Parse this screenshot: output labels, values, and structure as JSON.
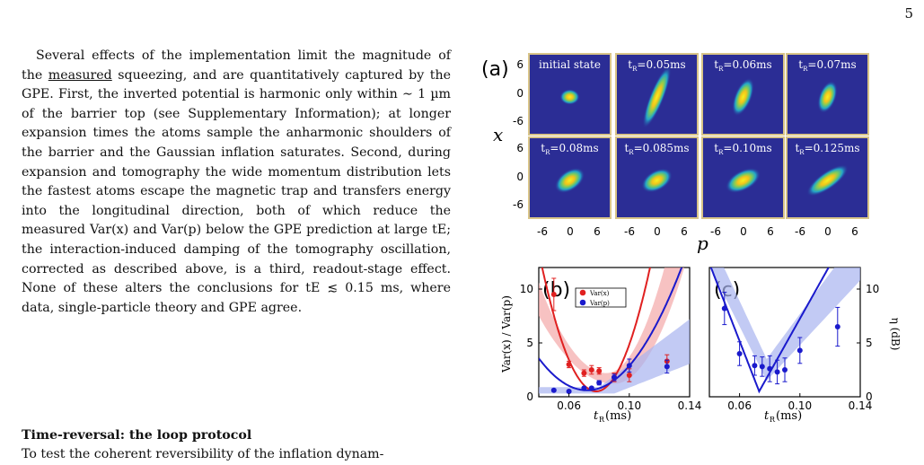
{
  "page_number": "5",
  "body": {
    "pre_measured": "Several effects of the implementation limit the magnitude of the ",
    "measured": "measured",
    "post_measured": " squeezing, and are quantitatively captured by the GPE. First, the inverted potential is harmonic only within ∼ 1 µm of the barrier top (see Supplementary Information); at longer expansion times the atoms sample the anharmonic shoulders of the barrier and the Gaussian inflation saturates. Second, during expansion and tomography the wide momentum distribution lets the fastest atoms escape the magnetic trap and transfers energy into the longitudinal direction, both of which reduce the measured Var(x) and Var(p) below the GPE prediction at large tE; the interaction-induced damping of the tomography oscillation, corrected as described above, is a third, readout-stage effect. None of these alters the conclusions for tE ≲ 0.15 ms, where data, single-particle theory and GPE agree."
  },
  "section": {
    "title": "Time-reversal: the loop protocol",
    "first_line": "To test the coherent reversibility of the inflation dynam-"
  },
  "figure": {
    "panel_a": {
      "label": "(a)",
      "ylabel": "x",
      "xlabel": "p",
      "y_ticks": [
        "6",
        "0",
        "-6"
      ],
      "x_ticks": [
        "-6",
        "0",
        "6"
      ],
      "tiles": [
        {
          "label": "initial state",
          "angle": 0,
          "rx": 7,
          "ry": 7
        },
        {
          "label_main": "t",
          "label_sub": "R",
          "label_val": "=0.05ms",
          "angle": 22,
          "rx": 5,
          "ry": 30
        },
        {
          "label_main": "t",
          "label_sub": "R",
          "label_val": "=0.06ms",
          "angle": 22,
          "rx": 6,
          "ry": 18
        },
        {
          "label_main": "t",
          "label_sub": "R",
          "label_val": "=0.07ms",
          "angle": 20,
          "rx": 6,
          "ry": 15
        },
        {
          "label_main": "t",
          "label_sub": "R",
          "label_val": "=0.08ms",
          "angle": 55,
          "rx": 7,
          "ry": 15
        },
        {
          "label_main": "t",
          "label_sub": "R",
          "label_val": "=0.085ms",
          "angle": 60,
          "rx": 7,
          "ry": 15
        },
        {
          "label_main": "t",
          "label_sub": "R",
          "label_val": "=0.10ms",
          "angle": 62,
          "rx": 7,
          "ry": 17
        },
        {
          "label_main": "t",
          "label_sub": "R",
          "label_val": "=0.125ms",
          "angle": 55,
          "rx": 6,
          "ry": 22
        }
      ]
    },
    "panel_b": {
      "label": "(b)",
      "ylabel": "Var(x) / Var(p)",
      "xlabel_main": "t",
      "xlabel_sub": "R",
      "xlabel_unit": " (ms)",
      "y_ticks": [
        "0",
        "5",
        "10"
      ],
      "x_ticks": [
        "0.06",
        "0.10",
        "0.14"
      ],
      "legend": [
        "Var(x)",
        "Var(p)"
      ],
      "colors": {
        "varx": "#e02020",
        "varp": "#1a1acc",
        "varx_band": "#f4a8a8",
        "varp_band": "#a8b4f0"
      }
    },
    "panel_c": {
      "label": "(c)",
      "ylabel": "η (dB)",
      "xlabel_main": "t",
      "xlabel_sub": "R",
      "xlabel_unit": " (ms)",
      "y_ticks": [
        "0",
        "5",
        "10"
      ],
      "x_ticks": [
        "0.06",
        "0.10",
        "0.14"
      ]
    }
  },
  "chart_data": [
    {
      "type": "scatter",
      "panel": "(b)",
      "xlabel": "tR (ms)",
      "ylabel": "Var(x) / Var(p)",
      "xlim": [
        0.04,
        0.14
      ],
      "ylim": [
        0,
        12
      ],
      "series": [
        {
          "name": "Var(x)",
          "x": [
            0.05,
            0.06,
            0.07,
            0.075,
            0.08,
            0.09,
            0.1,
            0.125
          ],
          "y": [
            9.5,
            3.0,
            2.2,
            2.5,
            2.4,
            1.8,
            2.0,
            3.3
          ],
          "err": [
            1.5,
            0.3,
            0.3,
            0.4,
            0.3,
            0.4,
            0.6,
            0.6
          ]
        },
        {
          "name": "Var(p)",
          "x": [
            0.05,
            0.06,
            0.07,
            0.075,
            0.08,
            0.09,
            0.1,
            0.125
          ],
          "y": [
            0.6,
            0.5,
            0.8,
            0.8,
            1.3,
            1.8,
            2.9,
            2.8
          ],
          "err": [
            0.1,
            0.1,
            0.1,
            0.1,
            0.2,
            0.3,
            0.6,
            0.6
          ]
        }
      ]
    },
    {
      "type": "scatter",
      "panel": "(c)",
      "xlabel": "tR (ms)",
      "ylabel": "η (dB)",
      "xlim": [
        0.04,
        0.14
      ],
      "ylim": [
        0,
        12
      ],
      "series": [
        {
          "x": [
            0.05,
            0.06,
            0.07,
            0.075,
            0.08,
            0.085,
            0.09,
            0.1,
            0.125
          ],
          "y": [
            8.2,
            4.0,
            2.9,
            2.8,
            2.6,
            2.3,
            2.5,
            4.3,
            6.5
          ],
          "err": [
            1.5,
            1.1,
            0.9,
            0.9,
            1.2,
            1.1,
            1.1,
            1.2,
            1.8
          ]
        }
      ]
    }
  ]
}
